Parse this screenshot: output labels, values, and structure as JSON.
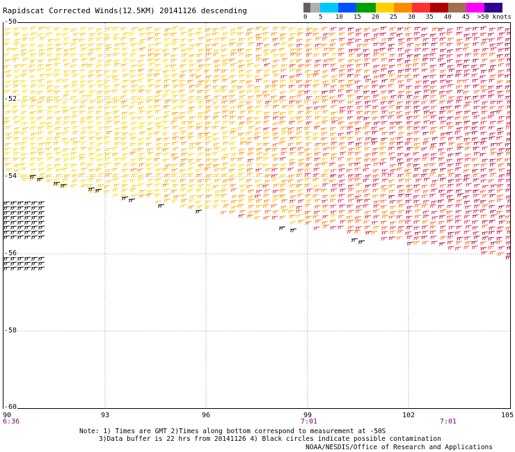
{
  "title": "Rapidscat Corrected Winds(12.5KM) 20141126 descending",
  "legend": {
    "labels": [
      "0",
      "5",
      "10",
      "15",
      "20",
      "25",
      "30",
      "35",
      "40",
      "45",
      ">50 knots"
    ],
    "colors": [
      "#606060",
      "#b0b0b0",
      "#00c8ff",
      "#0050ff",
      "#00a000",
      "#ffd000",
      "#ff8c00",
      "#ff3030",
      "#b00000",
      "#a07050",
      "#ff00ff",
      "#300090"
    ]
  },
  "map": {
    "lon_range": [
      90,
      105
    ],
    "lat_range": [
      -60,
      -50
    ],
    "x_ticks": [
      "90",
      "93",
      "96",
      "99",
      "102",
      "105"
    ],
    "y_ticks": [
      "-50",
      "-52",
      "-54",
      "-56",
      "-58",
      "-60"
    ],
    "grid": "dotted",
    "time_labels": [
      "6:36",
      "7:01",
      "7:01"
    ],
    "swath_description": "wind barbs, mostly 20-40 knots; some contaminated (black) barbs near the swath edge"
  },
  "notes": {
    "line1": "Note: 1) Times are GMT 2)Times along bottom correspond to measurement at -50S",
    "line2": "3)Data buffer is 22 hrs from 20141126 4) Black circles indicate possible contamination",
    "credit": "NOAA/NESDIS/Office of Research and Applications"
  }
}
